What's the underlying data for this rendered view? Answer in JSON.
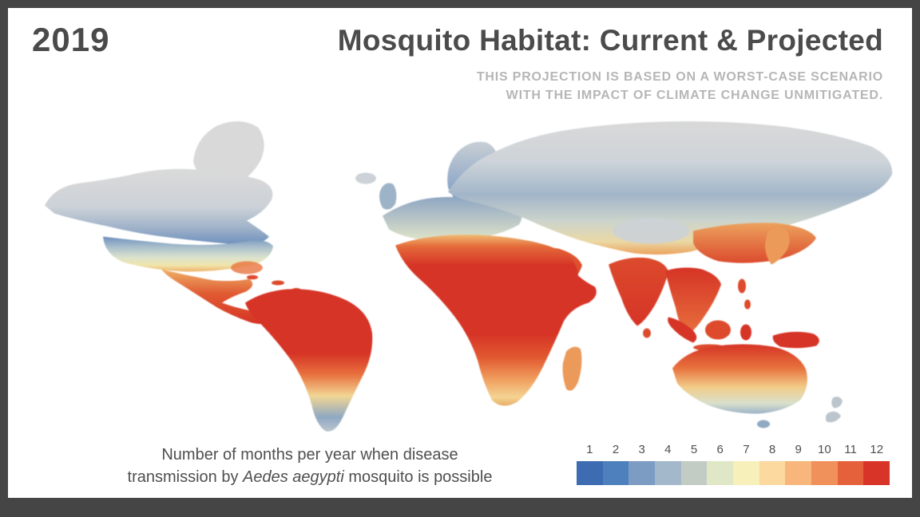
{
  "colors": {
    "frame": "#454545",
    "background": "#ffffff",
    "title_text": "#4b4b4b",
    "subtitle_text": "#b6b6b6",
    "caption_text": "#4f4f4f",
    "no_data_land": "#d9d9d9"
  },
  "header": {
    "year": "2019",
    "title": "Mosquito Habitat: Current & Projected",
    "subtitle_line1": "THIS PROJECTION IS BASED ON A WORST-CASE SCENARIO",
    "subtitle_line2": "WITH THE IMPACT OF CLIMATE CHANGE UNMITIGATED."
  },
  "caption": {
    "line1": "Number of months per year when disease",
    "line2_pre": "transmission by ",
    "line2_italic": "Aedes aegypti",
    "line2_post": " mosquito is possible"
  },
  "legend": {
    "labels": [
      "1",
      "2",
      "3",
      "4",
      "5",
      "6",
      "7",
      "8",
      "9",
      "10",
      "11",
      "12"
    ],
    "colors": [
      "#3d6cb3",
      "#4e80bd",
      "#7d9cc4",
      "#a3b8cb",
      "#c2ccc5",
      "#e0e7c6",
      "#f7f0ba",
      "#fbd99f",
      "#f8b67c",
      "#f0905a",
      "#e5613c",
      "#d93428"
    ]
  },
  "chart_data": {
    "type": "choropleth-map",
    "title": "Mosquito Habitat: Current & Projected",
    "year": "2019",
    "measure": "Number of months per year when disease transmission by Aedes aegypti mosquito is possible",
    "scale_min": 1,
    "scale_max": 12,
    "scale_labels": [
      "1",
      "2",
      "3",
      "4",
      "5",
      "6",
      "7",
      "8",
      "9",
      "10",
      "11",
      "12"
    ],
    "scale_colors": [
      "#3d6cb3",
      "#4e80bd",
      "#7d9cc4",
      "#a3b8cb",
      "#c2ccc5",
      "#e0e7c6",
      "#f7f0ba",
      "#fbd99f",
      "#f8b67c",
      "#f0905a",
      "#e5613c",
      "#d93428"
    ],
    "high_transmission_regions": [
      "Tropical South America (Amazon)",
      "Central America & Caribbean",
      "Sub-Saharan Africa",
      "Middle East / Arabia",
      "South Asia (India)",
      "Southeast Asia & Indonesia",
      "Northern Australia"
    ],
    "mid_transmission_regions": [
      "Southern United States",
      "Southern Europe",
      "Southern China",
      "Central Australia",
      "Southern Africa"
    ],
    "low_transmission_regions": [
      "Northern United States",
      "Northern Europe",
      "Southern South America",
      "Southern Australia",
      "New Zealand",
      "Japan (north)"
    ],
    "no_data_regions": [
      "Greenland",
      "Arctic Canada",
      "Siberia",
      "Tibetan Plateau"
    ]
  }
}
